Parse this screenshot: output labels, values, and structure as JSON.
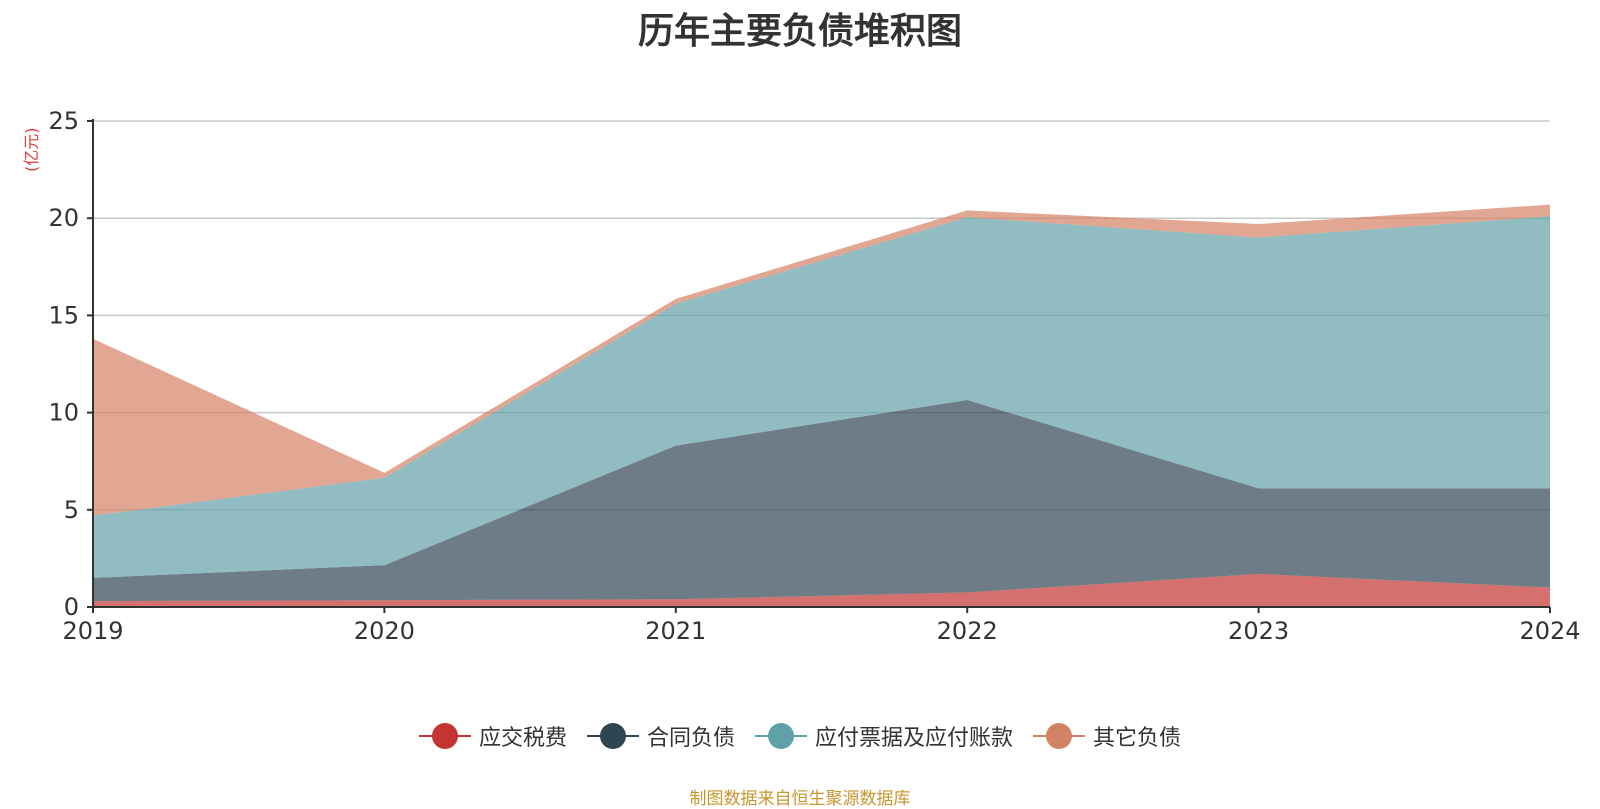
{
  "title": "历年主要负债堆积图",
  "unit_label": "(亿元)",
  "source": "制图数据来自恒生聚源数据库",
  "chart_data": {
    "type": "area",
    "stacked": true,
    "title": "历年主要负债堆积图",
    "ylabel": "(亿元)",
    "x": [
      "2019",
      "2020",
      "2021",
      "2022",
      "2023",
      "2024"
    ],
    "ylim": [
      0,
      25
    ],
    "yticks": [
      0,
      5,
      10,
      15,
      20,
      25
    ],
    "grid": true,
    "legend_position": "bottom",
    "series": [
      {
        "name": "应交税费",
        "color": "#c23531",
        "values": [
          0.3,
          0.35,
          0.4,
          0.75,
          1.7,
          1.0
        ]
      },
      {
        "name": "合同负债",
        "color": "#2f4554",
        "values": [
          1.2,
          1.8,
          7.9,
          9.9,
          4.4,
          5.1
        ]
      },
      {
        "name": "应付票据及应付账款",
        "color": "#61a0a8",
        "values": [
          3.2,
          4.5,
          7.3,
          9.4,
          12.9,
          14.0
        ]
      },
      {
        "name": "其它负债",
        "color": "#d48265",
        "values": [
          9.1,
          0.25,
          0.25,
          0.35,
          0.7,
          0.6
        ]
      }
    ]
  }
}
